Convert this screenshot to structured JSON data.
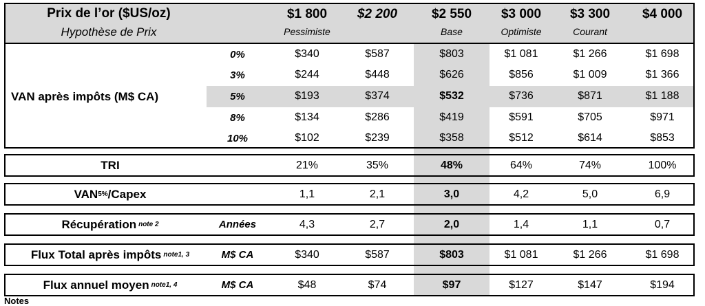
{
  "header": {
    "label_line1": "Prix de l’or ($US/oz)",
    "label_line2": "Hypothèse de Prix",
    "columns": [
      {
        "price": "$1 800",
        "scenario": "Pessimiste"
      },
      {
        "price": "$2 200",
        "scenario": ""
      },
      {
        "price": "$2 550",
        "scenario": "Base"
      },
      {
        "price": "$3 000",
        "scenario": "Optimiste"
      },
      {
        "price": "$3 300",
        "scenario": "Courant"
      },
      {
        "price": "$4 000",
        "scenario": ""
      }
    ]
  },
  "npv": {
    "label": "VAN après impôts (M$ CA)",
    "rows": [
      {
        "rate": "0%",
        "values": [
          "$340",
          "$587",
          "$803",
          "$1 081",
          "$1 266",
          "$1 698"
        ]
      },
      {
        "rate": "3%",
        "values": [
          "$244",
          "$448",
          "$626",
          "$856",
          "$1 009",
          "$1 366"
        ]
      },
      {
        "rate": "5%",
        "values": [
          "$193",
          "$374",
          "$532",
          "$736",
          "$871",
          "$1 188"
        ]
      },
      {
        "rate": "8%",
        "values": [
          "$134",
          "$286",
          "$419",
          "$591",
          "$705",
          "$971"
        ]
      },
      {
        "rate": "10%",
        "values": [
          "$102",
          "$239",
          "$358",
          "$512",
          "$614",
          "$853"
        ]
      }
    ]
  },
  "metrics": [
    {
      "label": "TRI",
      "unit": "",
      "values": [
        "21%",
        "35%",
        "48%",
        "64%",
        "74%",
        "100%"
      ]
    },
    {
      "label": "VAN",
      "label_sub": "5%",
      "label_rest": "/Capex",
      "unit": "",
      "values": [
        "1,1",
        "2,1",
        "3,0",
        "4,2",
        "5,0",
        "6,9"
      ]
    },
    {
      "label": "Récupération",
      "note": "note 2",
      "unit": "Années",
      "values": [
        "4,3",
        "2,7",
        "2,0",
        "1,4",
        "1,1",
        "0,7"
      ]
    },
    {
      "label": "Flux Total après impôts",
      "note": "note1, 3",
      "unit": "M$ CA",
      "values": [
        "$340",
        "$587",
        "$803",
        "$1 081",
        "$1 266",
        "$1 698"
      ]
    },
    {
      "label": "Flux annuel moyen",
      "note": "note1, 4",
      "unit": "M$ CA",
      "values": [
        "$48",
        "$74",
        "$97",
        "$127",
        "$147",
        "$194"
      ]
    }
  ],
  "footer": {
    "notes_label": "Notes"
  }
}
